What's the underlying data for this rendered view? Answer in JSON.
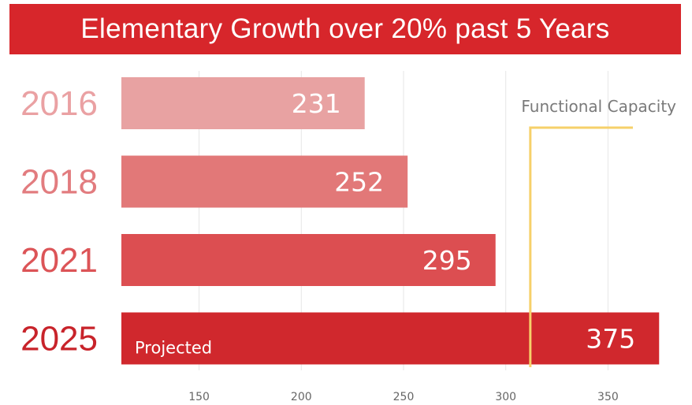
{
  "chart_data": {
    "type": "bar",
    "orientation": "horizontal",
    "title": "Elementary Growth over 20% past 5 Years",
    "categories": [
      "2016",
      "2018",
      "2021",
      "2025"
    ],
    "values": [
      231,
      252,
      295,
      375
    ],
    "value_labels": [
      "231",
      "252",
      "295",
      "375"
    ],
    "bar_notes": [
      "",
      "",
      "",
      "Projected"
    ],
    "bar_colors": [
      "#e8a2a2",
      "#e27878",
      "#dc4e51",
      "#d0282d"
    ],
    "category_label_colors": [
      "#eaa1a3",
      "#e27c7f",
      "#dc5457",
      "#c8232a"
    ],
    "xlim": [
      112,
      388
    ],
    "x_ticks": [
      150,
      200,
      250,
      300,
      350
    ],
    "grid": true,
    "reference_line": {
      "label": "Functional Capacity",
      "x": 312,
      "color": "#f6d06a"
    }
  }
}
